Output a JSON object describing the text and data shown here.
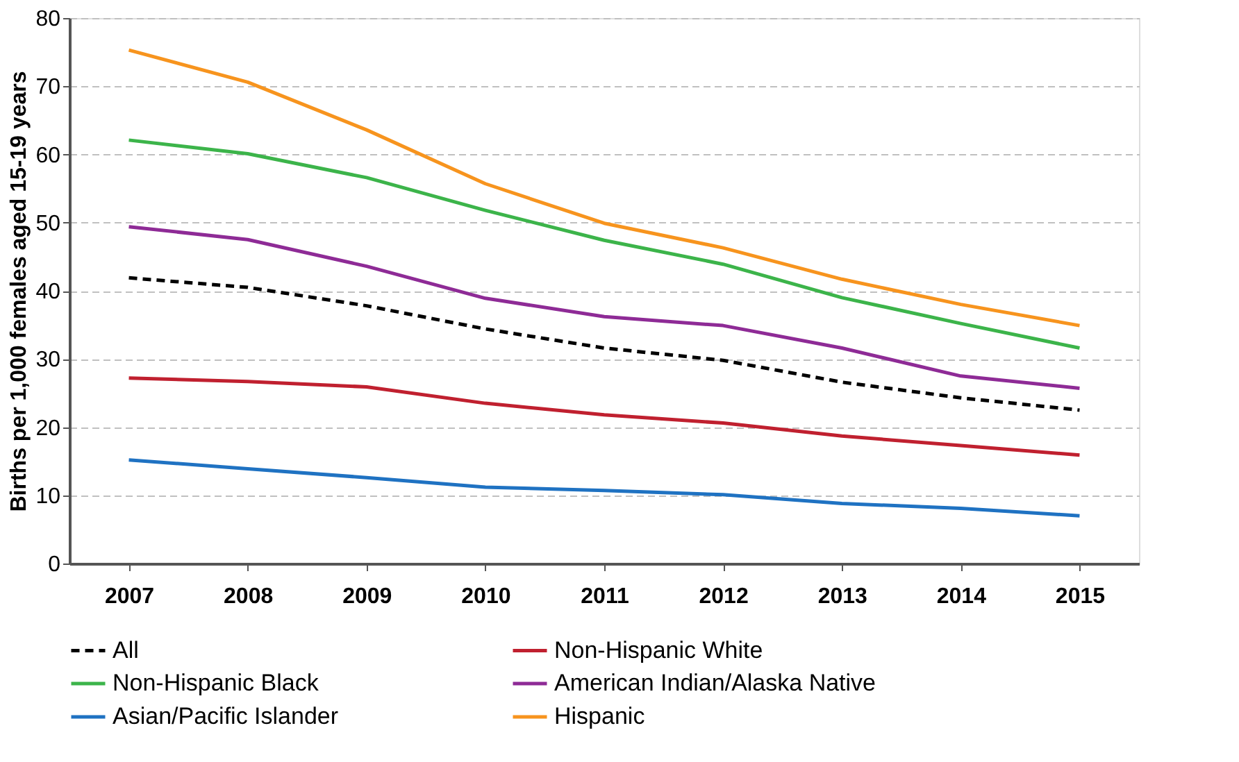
{
  "chart_data": {
    "type": "line",
    "ylabel": "Births per 1,000 females aged 15-19 years",
    "categories": [
      "2007",
      "2008",
      "2009",
      "2010",
      "2011",
      "2012",
      "2013",
      "2014",
      "2015"
    ],
    "ylim": [
      0,
      80
    ],
    "yticks": [
      0,
      10,
      20,
      30,
      40,
      50,
      60,
      70,
      80
    ],
    "grid": "y",
    "legend": "bottom",
    "marker": "none",
    "series": [
      {
        "name": "All",
        "color": "#000000",
        "line_style": "dashed",
        "values": [
          41.9,
          40.5,
          37.8,
          34.4,
          31.6,
          29.8,
          26.6,
          24.3,
          22.5
        ]
      },
      {
        "name": "Non-Hispanic White",
        "color": "#c0202f",
        "line_style": "solid",
        "values": [
          27.2,
          26.7,
          25.9,
          23.5,
          21.8,
          20.6,
          18.7,
          17.3,
          15.9
        ]
      },
      {
        "name": "Non-Hispanic Black",
        "color": "#3cb44a",
        "line_style": "solid",
        "values": [
          62.1,
          60.1,
          56.6,
          51.8,
          47.4,
          43.9,
          39.0,
          35.2,
          31.6
        ]
      },
      {
        "name": "American Indian/Alaska Native",
        "color": "#8e2b96",
        "line_style": "solid",
        "values": [
          49.4,
          47.5,
          43.6,
          38.9,
          36.2,
          34.9,
          31.6,
          27.5,
          25.7
        ]
      },
      {
        "name": "Asian/Pacific Islander",
        "color": "#1f72c2",
        "line_style": "solid",
        "values": [
          15.2,
          13.9,
          12.6,
          11.2,
          10.7,
          10.1,
          8.8,
          8.1,
          7.0
        ]
      },
      {
        "name": "Hispanic",
        "color": "#f7941e",
        "line_style": "solid",
        "values": [
          75.3,
          70.6,
          63.6,
          55.7,
          49.9,
          46.3,
          41.7,
          38.0,
          34.9
        ]
      }
    ]
  }
}
